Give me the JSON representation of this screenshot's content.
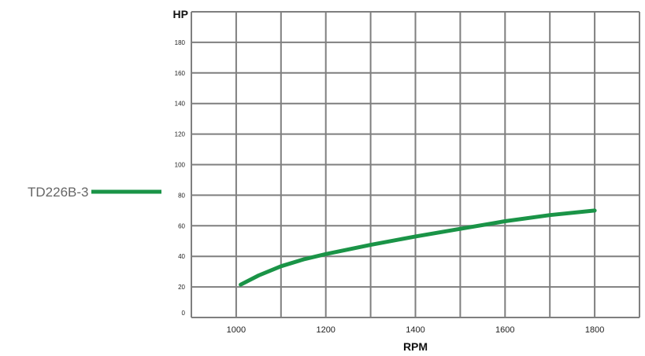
{
  "chart_data": {
    "type": "line",
    "title": "",
    "xlabel": "RPM",
    "ylabel": "HP",
    "xlim": [
      900,
      1900
    ],
    "ylim": [
      0,
      200
    ],
    "x_ticks": [
      1000,
      1200,
      1400,
      1600,
      1800
    ],
    "y_ticks": [
      0,
      20,
      40,
      60,
      80,
      100,
      120,
      140,
      160,
      180
    ],
    "grid": true,
    "legend_position": "left",
    "series": [
      {
        "name": "TD226B-3",
        "color": "#1a9447",
        "x": [
          1010,
          1050,
          1100,
          1150,
          1200,
          1300,
          1400,
          1500,
          1600,
          1700,
          1800
        ],
        "y": [
          21.5,
          27.5,
          33.5,
          38,
          41.5,
          47.5,
          53,
          58,
          63,
          67,
          70
        ]
      }
    ]
  }
}
